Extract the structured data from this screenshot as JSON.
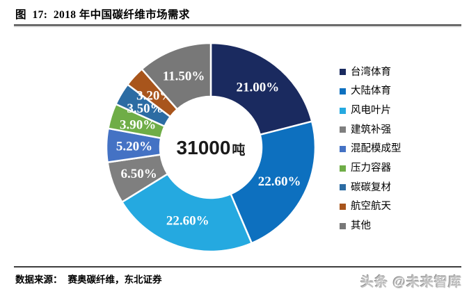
{
  "header": {
    "title": "图  17:  2018 年中国碳纤维市场需求"
  },
  "chart_data": {
    "type": "pie",
    "subtype": "donut",
    "title": "2018 年中国碳纤维市场需求",
    "categories": [
      "台湾体育",
      "大陆体育",
      "风电叶片",
      "建筑补强",
      "混配模成型",
      "压力容器",
      "碳碳复材",
      "航空航天",
      "其他"
    ],
    "values": [
      21.0,
      22.6,
      22.6,
      6.5,
      5.2,
      3.9,
      3.5,
      3.2,
      11.5
    ],
    "labels": [
      "21.00%",
      "22.60%",
      "22.60%",
      "6.50%",
      "5.20%",
      "3.90%",
      "3.50%",
      "3.20%",
      "11.50%"
    ],
    "colors": [
      "#1a2a5f",
      "#0d70bf",
      "#25a9e0",
      "#7f7f7f",
      "#4472c4",
      "#6fad47",
      "#2c6ca3",
      "#a8551c",
      "#787878"
    ],
    "center_label": {
      "value": "31000",
      "unit": "吨"
    },
    "start_angle_deg": 0,
    "direction": "clockwise",
    "legend_position": "right",
    "label_color": "#ffffff"
  },
  "footer": {
    "source_label": "数据来源：",
    "source_text": "赛奥碳纤维，东北证券",
    "watermark": "头条 @未来智库"
  }
}
